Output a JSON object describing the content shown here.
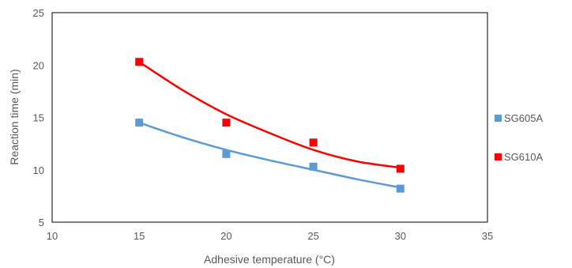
{
  "chart_data": {
    "type": "scatter",
    "title": "",
    "xlabel": "Adhesive temperature (°C)",
    "ylabel": "Reaction time (min)",
    "xlim": [
      10,
      35
    ],
    "ylim": [
      5,
      25
    ],
    "xticks": [
      "10",
      "15",
      "20",
      "25",
      "30",
      "35"
    ],
    "yticks": [
      "5",
      "10",
      "15",
      "20",
      "25"
    ],
    "grid": false,
    "legend_position": "right",
    "trendline": "polynomial",
    "series": [
      {
        "name": "SG605A",
        "color": "#5b9bd5",
        "x": [
          15,
          20,
          25,
          30
        ],
        "y": [
          14.5,
          11.5,
          10.3,
          8.2
        ],
        "trend": [
          [
            15,
            14.5
          ],
          [
            17.5,
            13.1
          ],
          [
            20,
            11.9
          ],
          [
            22.5,
            10.9
          ],
          [
            25,
            10.0
          ],
          [
            27.5,
            9.1
          ],
          [
            30,
            8.3
          ]
        ]
      },
      {
        "name": "SG610A",
        "color": "#ff0000",
        "x": [
          15,
          20,
          25,
          30
        ],
        "y": [
          20.3,
          14.5,
          12.6,
          10.1
        ],
        "trend": [
          [
            15,
            20.3
          ],
          [
            17.5,
            17.6
          ],
          [
            20,
            15.3
          ],
          [
            22.5,
            13.5
          ],
          [
            25,
            11.9
          ],
          [
            27.5,
            10.8
          ],
          [
            30,
            10.2
          ]
        ]
      }
    ]
  }
}
